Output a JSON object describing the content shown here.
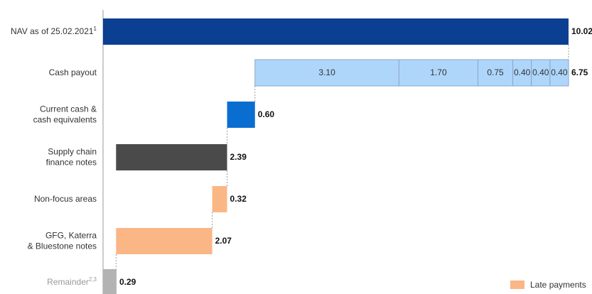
{
  "chart_data": {
    "type": "bar",
    "subtype": "waterfall-horizontal",
    "unit_max": 10.02,
    "rows": [
      {
        "label_lines": [
          "NAV as of 25.02.2021"
        ],
        "sup": "1",
        "start": 0,
        "value": 10.02,
        "value_label": "10.02",
        "color": "#0a3f91",
        "muted": false
      },
      {
        "label_lines": [
          "Cash payout"
        ],
        "sup": "",
        "start": 3.27,
        "value": 6.75,
        "value_label": "6.75",
        "color": "#aed6fb",
        "muted": false,
        "segments": [
          {
            "value": 3.1,
            "label": "3.10"
          },
          {
            "value": 1.7,
            "label": "1.70"
          },
          {
            "value": 0.75,
            "label": "0.75"
          },
          {
            "value": 0.4,
            "label": "0.40"
          },
          {
            "value": 0.4,
            "label": "0.40"
          },
          {
            "value": 0.4,
            "label": "0.40"
          }
        ]
      },
      {
        "label_lines": [
          "Current cash &",
          "cash equivalents"
        ],
        "sup": "",
        "start": 2.67,
        "value": 0.6,
        "value_label": "0.60",
        "color": "#0a6ed1",
        "muted": false
      },
      {
        "label_lines": [
          "Supply chain",
          "finance notes"
        ],
        "sup": "",
        "start": 0.28,
        "value": 2.39,
        "value_label": "2.39",
        "color": "#4a4a4a",
        "muted": false
      },
      {
        "label_lines": [
          "Non-focus areas"
        ],
        "sup": "",
        "start": 2.35,
        "value": 0.32,
        "value_label": "0.32",
        "color": "#fbb685",
        "muted": false
      },
      {
        "label_lines": [
          "GFG, Katerra",
          "& Bluestone notes"
        ],
        "sup": "",
        "start": 0.28,
        "value": 2.07,
        "value_label": "2.07",
        "color": "#fbb685",
        "muted": false
      },
      {
        "label_lines": [
          "Remainder"
        ],
        "sup": "2,3",
        "start": 0,
        "value": 0.29,
        "value_label": "0.29",
        "color": "#b3b3b3",
        "muted": true
      }
    ],
    "legend": [
      {
        "label": "Late payments",
        "color": "#fbb685",
        "position": "bottom-right"
      }
    ]
  }
}
